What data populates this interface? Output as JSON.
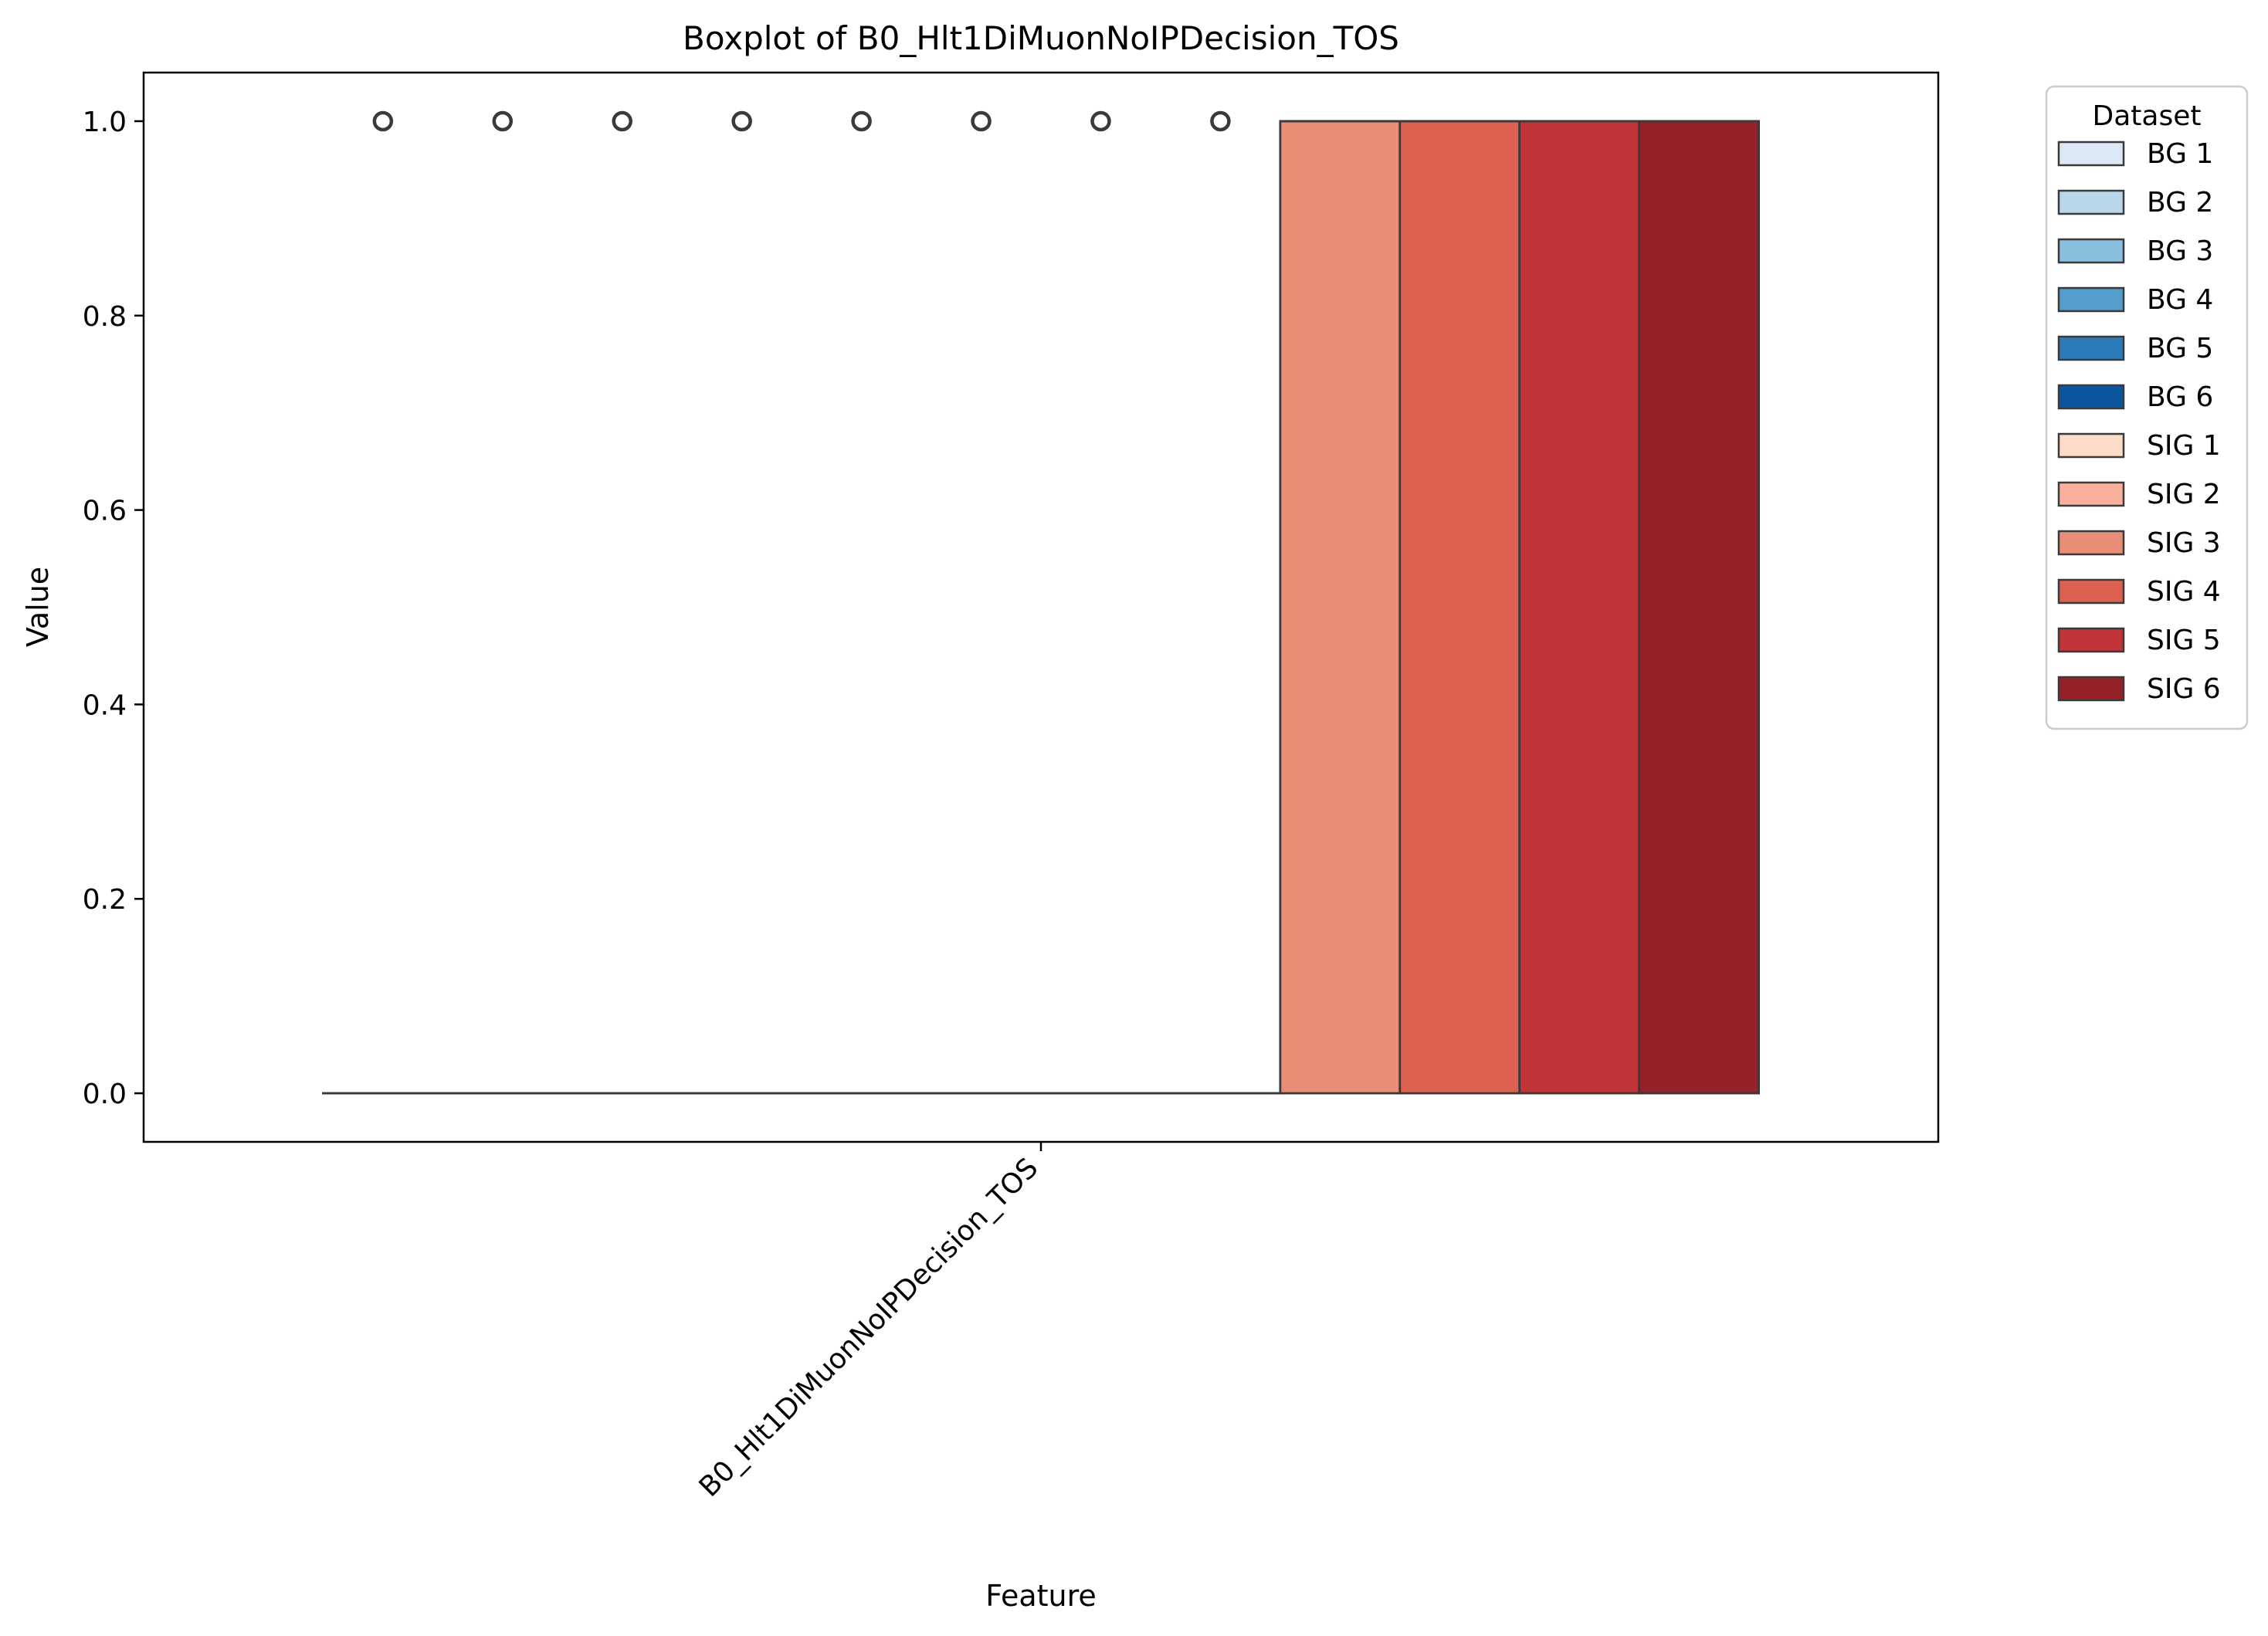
{
  "chart_data": {
    "type": "box",
    "title": "Boxplot of B0_Hlt1DiMuonNoIPDecision_TOS",
    "xlabel": "Feature",
    "ylabel": "Value",
    "categories": [
      "B0_Hlt1DiMuonNoIPDecision_TOS"
    ],
    "ylim": [
      -0.05,
      1.05
    ],
    "yticks": [
      0.0,
      0.2,
      0.4,
      0.6,
      0.8,
      1.0
    ],
    "ytick_labels": [
      "0.0",
      "0.2",
      "0.4",
      "0.6",
      "0.8",
      "1.0"
    ],
    "grid": false,
    "legend": {
      "title": "Dataset",
      "position": "outside-right-top"
    },
    "series": [
      {
        "name": "BG 1",
        "color": "#dbe9f6",
        "q1": 0,
        "median": 0,
        "q3": 0,
        "whisker_low": 0,
        "whisker_high": 0,
        "outliers": [
          1
        ]
      },
      {
        "name": "BG 2",
        "color": "#bad6eb",
        "q1": 0,
        "median": 0,
        "q3": 0,
        "whisker_low": 0,
        "whisker_high": 0,
        "outliers": [
          1
        ]
      },
      {
        "name": "BG 3",
        "color": "#89bedc",
        "q1": 0,
        "median": 0,
        "q3": 0,
        "whisker_low": 0,
        "whisker_high": 0,
        "outliers": [
          1
        ]
      },
      {
        "name": "BG 4",
        "color": "#539ecd",
        "q1": 0,
        "median": 0,
        "q3": 0,
        "whisker_low": 0,
        "whisker_high": 0,
        "outliers": [
          1
        ]
      },
      {
        "name": "BG 5",
        "color": "#2b7bba",
        "q1": 0,
        "median": 0,
        "q3": 0,
        "whisker_low": 0,
        "whisker_high": 0,
        "outliers": [
          1
        ]
      },
      {
        "name": "BG 6",
        "color": "#0b559f",
        "q1": 0,
        "median": 0,
        "q3": 0,
        "whisker_low": 0,
        "whisker_high": 0,
        "outliers": [
          1
        ]
      },
      {
        "name": "SIG 1",
        "color": "#fcdbc8",
        "q1": 0,
        "median": 0,
        "q3": 0,
        "whisker_low": 0,
        "whisker_high": 0,
        "outliers": [
          1
        ]
      },
      {
        "name": "SIG 2",
        "color": "#f9b09b",
        "q1": 0,
        "median": 0,
        "q3": 0,
        "whisker_low": 0,
        "whisker_high": 0,
        "outliers": [
          1
        ]
      },
      {
        "name": "SIG 3",
        "color": "#e88e76",
        "q1": 0,
        "median": 1,
        "q3": 1,
        "whisker_low": 0,
        "whisker_high": 1,
        "outliers": []
      },
      {
        "name": "SIG 4",
        "color": "#dd6150",
        "q1": 0,
        "median": 1,
        "q3": 1,
        "whisker_low": 0,
        "whisker_high": 1,
        "outliers": []
      },
      {
        "name": "SIG 5",
        "color": "#c13539",
        "q1": 0,
        "median": 1,
        "q3": 1,
        "whisker_low": 0,
        "whisker_high": 1,
        "outliers": []
      },
      {
        "name": "SIG 6",
        "color": "#962128",
        "q1": 0,
        "median": 1,
        "q3": 1,
        "whisker_low": 0,
        "whisker_high": 1,
        "outliers": []
      }
    ]
  }
}
